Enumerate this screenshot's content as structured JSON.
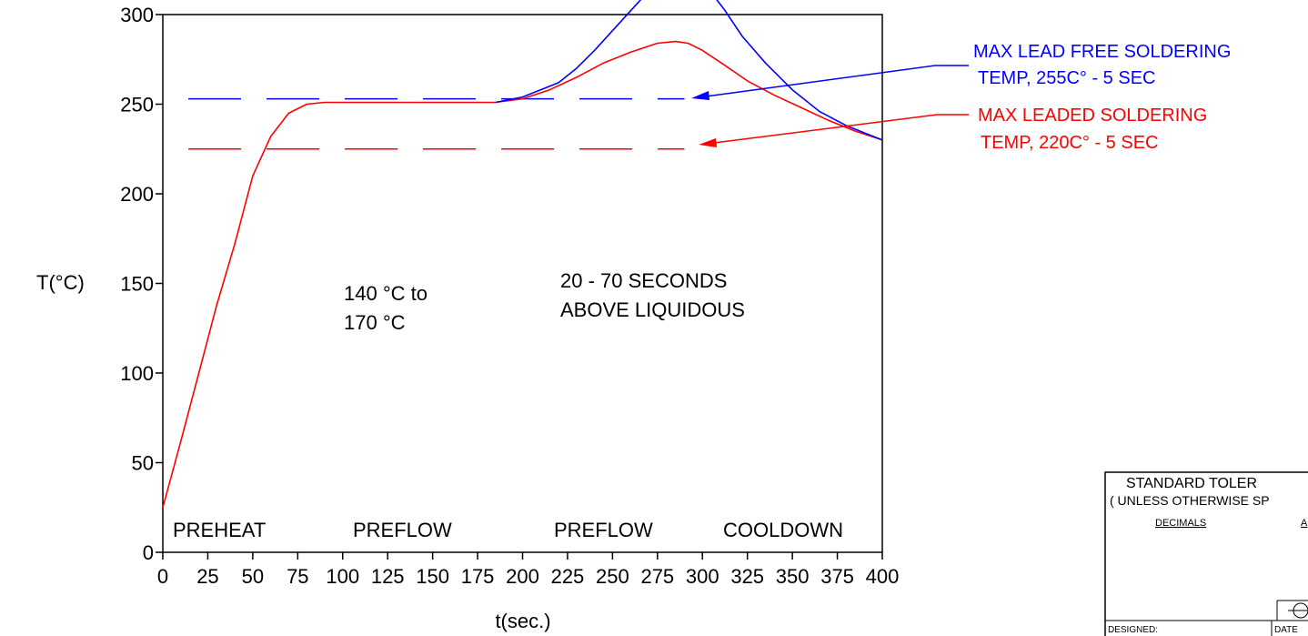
{
  "chart_data": {
    "type": "line",
    "xlabel": "t(sec.)",
    "ylabel": "T(°C)",
    "xlim": [
      0,
      400
    ],
    "ylim": [
      0,
      300
    ],
    "xticks": [
      0,
      25,
      50,
      75,
      100,
      125,
      150,
      175,
      200,
      225,
      250,
      275,
      300,
      325,
      350,
      375,
      400
    ],
    "yticks": [
      0,
      50,
      100,
      150,
      200,
      250,
      300
    ],
    "xtick_labels": [
      "0",
      "25",
      "50",
      "75",
      "100",
      "125",
      "150",
      "175",
      "200",
      "225",
      "250",
      "275",
      "300",
      "325",
      "350",
      "375",
      "400"
    ],
    "ytick_labels": [
      "0",
      "50",
      "100",
      "150",
      "200",
      "250",
      "300"
    ],
    "series": [
      {
        "color": "#ff0000",
        "points": [
          [
            0,
            25
          ],
          [
            10,
            62
          ],
          [
            20,
            100
          ],
          [
            30,
            138
          ],
          [
            40,
            172
          ],
          [
            50,
            210
          ],
          [
            60,
            232
          ],
          [
            70,
            245
          ],
          [
            80,
            250
          ],
          [
            90,
            251
          ],
          [
            100,
            251
          ],
          [
            130,
            251
          ],
          [
            160,
            251
          ],
          [
            185,
            251
          ],
          [
            200,
            253
          ],
          [
            215,
            258
          ],
          [
            230,
            265
          ],
          [
            245,
            273
          ],
          [
            260,
            279
          ],
          [
            275,
            284
          ],
          [
            285,
            285
          ],
          [
            292,
            284
          ],
          [
            300,
            280
          ],
          [
            312,
            272
          ],
          [
            325,
            263
          ],
          [
            340,
            255
          ],
          [
            355,
            248
          ],
          [
            370,
            241
          ],
          [
            385,
            235
          ],
          [
            400,
            230
          ]
        ]
      },
      {
        "color": "#0000ff",
        "points": [
          [
            185,
            251
          ],
          [
            200,
            254
          ],
          [
            210,
            258
          ],
          [
            220,
            262
          ],
          [
            230,
            270
          ],
          [
            240,
            280
          ],
          [
            250,
            291
          ],
          [
            260,
            302
          ],
          [
            270,
            313
          ],
          [
            280,
            320
          ],
          [
            288,
            322
          ],
          [
            295,
            321
          ],
          [
            302,
            316
          ],
          [
            312,
            303
          ],
          [
            322,
            288
          ],
          [
            335,
            273
          ],
          [
            350,
            258
          ],
          [
            365,
            246
          ],
          [
            380,
            238
          ],
          [
            400,
            230
          ]
        ]
      }
    ],
    "reference_lines": [
      {
        "y": 253,
        "color": "#0000ff",
        "style": "dashed"
      },
      {
        "y": 225,
        "color": "#ff0000",
        "style": "dashed"
      }
    ],
    "annotations": {
      "soak_line1": "140 °C to",
      "soak_line2": "170 °C",
      "reflow_line1": "20 - 70 SECONDS",
      "reflow_line2": "ABOVE LIQUIDOUS",
      "lead_free_line1": "MAX LEAD FREE SOLDERING",
      "lead_free_line2": "TEMP, 255C° - 5 SEC",
      "leaded_line1": "MAX LEADED SOLDERING",
      "leaded_line2": "TEMP, 220C° - 5 SEC"
    },
    "zones": [
      "PREHEAT",
      "PREFLOW",
      "PREFLOW",
      "COOLDOWN"
    ],
    "grid": false
  },
  "title_block": {
    "heading": "STANDARD TOLER",
    "subheading": "( UNLESS OTHERWISE SP",
    "decimals_label": "DECIMALS",
    "angular_label_partial": "A",
    "designed_label": "DESIGNED:",
    "date_label": "DATE",
    "projection_symbol": "projection-symbol-icon"
  }
}
